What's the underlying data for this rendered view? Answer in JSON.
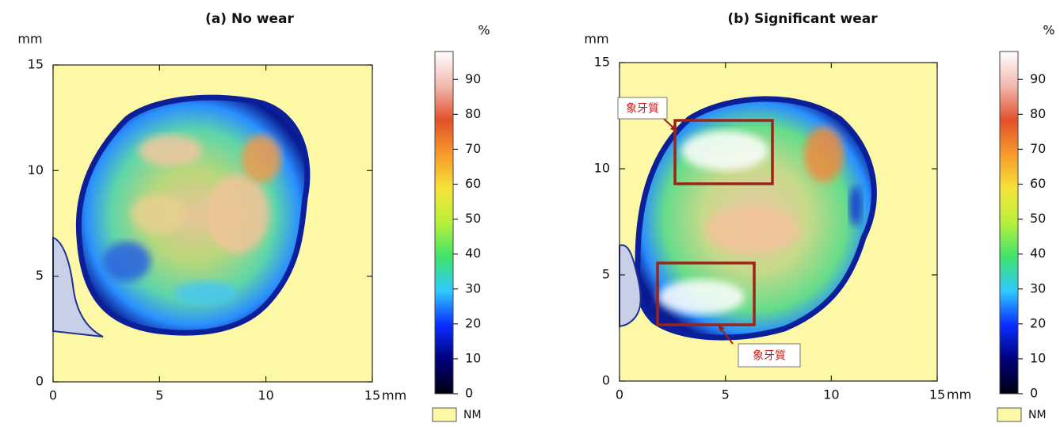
{
  "chart_data": [
    {
      "type": "heatmap",
      "title": "(a) No wear",
      "y_label": "mm",
      "x_label": "mm",
      "xlim": [
        0,
        15
      ],
      "ylim": [
        0,
        15
      ],
      "xticks": [
        0,
        5,
        10,
        15
      ],
      "yticks": [
        0,
        5,
        10,
        15
      ],
      "colorbar": {
        "label": "%",
        "clim": [
          0,
          98
        ],
        "ticks": [
          0,
          10,
          20,
          30,
          40,
          50,
          60,
          70,
          80,
          90
        ],
        "colormap": [
          "#000010",
          "#00007a",
          "#0a2cff",
          "#2ec9ff",
          "#3fe36a",
          "#b8f03a",
          "#f6e33a",
          "#f79a2a",
          "#e2502a",
          "#f2b9b0",
          "#ffffff"
        ]
      },
      "background_color": "#fdf8a6",
      "background_label": "NM"
    },
    {
      "type": "heatmap",
      "title": "(b) Significant wear",
      "y_label": "mm",
      "x_label": "mm",
      "xlim": [
        0,
        15
      ],
      "ylim": [
        0,
        15
      ],
      "xticks": [
        0,
        5,
        10,
        15
      ],
      "yticks": [
        0,
        5,
        10,
        15
      ],
      "colorbar": {
        "label": "%",
        "clim": [
          0,
          98
        ],
        "ticks": [
          0,
          10,
          20,
          30,
          40,
          50,
          60,
          70,
          80,
          90
        ],
        "colormap": [
          "#000010",
          "#00007a",
          "#0a2cff",
          "#2ec9ff",
          "#3fe36a",
          "#b8f03a",
          "#f6e33a",
          "#f79a2a",
          "#e2502a",
          "#f2b9b0",
          "#ffffff"
        ]
      },
      "background_color": "#fdf8a6",
      "background_label": "NM",
      "annotations": [
        "象牙質",
        "象牙質"
      ]
    }
  ]
}
